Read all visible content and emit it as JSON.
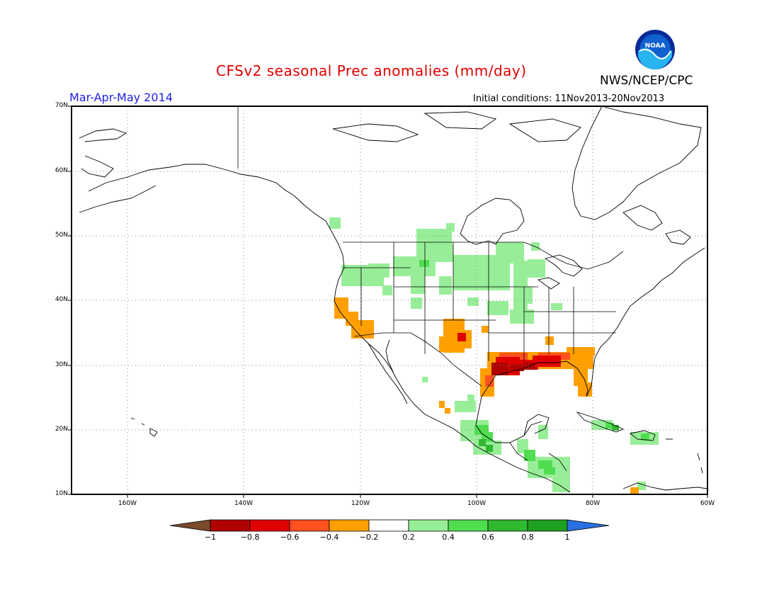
{
  "header": {
    "title": "CFSv2 seasonal Prec anomalies (mm/day)",
    "season": "Mar-Apr-May 2014",
    "initial_conditions": "Initial conditions: 11Nov2013-20Nov2013",
    "agency": "NWS/NCEP/CPC",
    "logo_text": "NOAA"
  },
  "map": {
    "region": "North America",
    "lat_labels": [
      "70N",
      "60N",
      "50N",
      "40N",
      "30N",
      "20N",
      "10N"
    ],
    "lon_labels": [
      "160W",
      "140W",
      "120W",
      "100W",
      "80W",
      "60W"
    ],
    "grid": "dotted"
  },
  "colorbar": {
    "labels": [
      "−1",
      "−0.8",
      "−0.6",
      "−0.4",
      "−0.2",
      "0.2",
      "0.4",
      "0.6",
      "0.8",
      "1"
    ],
    "colors": [
      "#7a4a2a",
      "#b00000",
      "#e00000",
      "#ff5020",
      "#ffa000",
      "#ffffff",
      "#98ee98",
      "#50dd50",
      "#30b830",
      "#20a020",
      "#2a70e0"
    ]
  }
}
